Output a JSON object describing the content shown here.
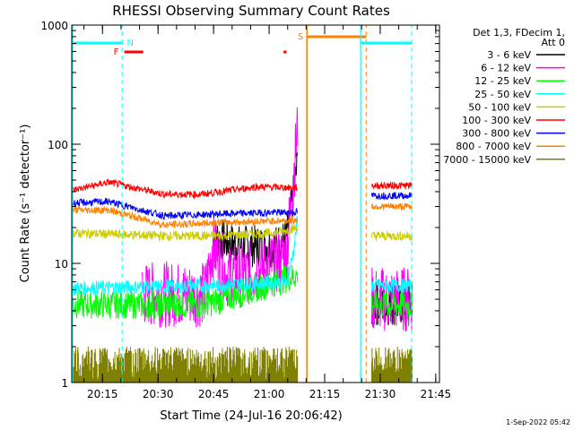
{
  "chart_data": {
    "type": "line",
    "title": "RHESSI Observing Summary Count Rates",
    "xlabel": "Start Time (24-Jul-16 20:06:42)",
    "ylabel": "Count Rate (s⁻¹ detector⁻¹)",
    "y_scale": "log",
    "ylim": [
      1,
      1000
    ],
    "xlim": [
      "20:06:42",
      "21:46:00"
    ],
    "x_ticks": [
      "20:15",
      "20:30",
      "20:45",
      "21:00",
      "21:15",
      "21:30",
      "21:45"
    ],
    "y_ticks": [
      1,
      10,
      100,
      1000
    ],
    "legend_header": [
      "Det 1,3, FDecim 1,",
      "Att 0"
    ],
    "legend_position": "right",
    "series": [
      {
        "name": "3 - 6 keV",
        "color": "#000000",
        "values": [
          [
            0,
            null
          ],
          [
            36,
            null
          ],
          [
            38,
            17
          ],
          [
            45,
            14
          ],
          [
            50,
            14
          ],
          [
            55,
            14
          ],
          [
            58,
            16
          ],
          [
            60,
            40
          ],
          [
            61,
            70
          ]
        ]
      },
      {
        "name": "6 - 12 keV",
        "color": "#ff00ff",
        "values": [
          [
            19,
            5.5
          ],
          [
            36,
            5.5
          ],
          [
            38,
            14
          ],
          [
            42,
            8
          ],
          [
            47,
            8
          ],
          [
            55,
            10
          ],
          [
            58,
            12
          ],
          [
            60,
            60
          ],
          [
            61,
            140
          ]
        ]
      },
      {
        "name": "12 - 25 keV",
        "color": "#00ff00",
        "values": [
          [
            0,
            4.5
          ],
          [
            36,
            4.5
          ],
          [
            61,
            8
          ]
        ]
      },
      {
        "name": "25 - 50 keV",
        "color": "#00ffff",
        "values": [
          [
            0,
            6.2
          ],
          [
            36,
            6.5
          ],
          [
            58,
            7
          ],
          [
            60,
            13
          ],
          [
            61,
            25
          ]
        ]
      },
      {
        "name": "50 - 100 keV",
        "color": "#cccc00",
        "values": [
          [
            0,
            18
          ],
          [
            25,
            17
          ],
          [
            40,
            17
          ],
          [
            55,
            18
          ],
          [
            61,
            20
          ]
        ]
      },
      {
        "name": "100 - 300 keV",
        "color": "#ff0000",
        "values": [
          [
            0,
            41
          ],
          [
            10,
            48
          ],
          [
            25,
            38
          ],
          [
            35,
            38
          ],
          [
            50,
            44
          ],
          [
            61,
            43
          ]
        ]
      },
      {
        "name": "300 - 800 keV",
        "color": "#0000ff",
        "values": [
          [
            0,
            32
          ],
          [
            10,
            33
          ],
          [
            25,
            25
          ],
          [
            40,
            26
          ],
          [
            61,
            27
          ]
        ]
      },
      {
        "name": "800 - 7000 keV",
        "color": "#ff8000",
        "values": [
          [
            0,
            28
          ],
          [
            10,
            28
          ],
          [
            25,
            21
          ],
          [
            40,
            22
          ],
          [
            61,
            23
          ]
        ]
      },
      {
        "name": "7000 - 15000 keV",
        "color": "#808000",
        "values": [
          [
            0,
            1.6
          ],
          [
            61,
            1.6
          ]
        ]
      }
    ],
    "later_segment": {
      "x_range": [
        81,
        92
      ],
      "values": {
        "3 - 6 keV": 4.5,
        "6 - 12 keV": 5.0,
        "12 - 25 keV": 4.5,
        "25 - 50 keV": 6.5,
        "50 - 100 keV": 17,
        "100 - 300 keV": 45,
        "300 - 800 keV": 37,
        "800 - 7000 keV": 30,
        "7000 - 15000 keV": 1.6
      }
    },
    "annotations": {
      "night_label": "N",
      "saa_label": "S",
      "flare_label": "F"
    },
    "footer_timestamp": "1-Sep-2022 05:42"
  }
}
